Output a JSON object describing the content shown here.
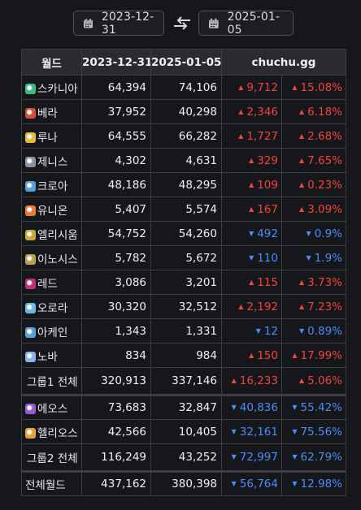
{
  "date_range": {
    "from": "2023-12-31",
    "to": "2025-01-05"
  },
  "table": {
    "headers": {
      "world": "월드",
      "date_from": "2023-12-31",
      "date_to": "2025-01-05",
      "source": "chuchu.gg"
    },
    "rows": [
      {
        "name": "스카니아",
        "icon": "scania-icon",
        "color": "#3fb884",
        "from": "64,394",
        "to": "74,106",
        "diff": "9,712",
        "pct": "15.08%",
        "dir": "up"
      },
      {
        "name": "베라",
        "icon": "bera-icon",
        "color": "#d94a3a",
        "from": "37,952",
        "to": "40,298",
        "diff": "2,346",
        "pct": "6.18%",
        "dir": "up"
      },
      {
        "name": "루나",
        "icon": "luna-icon",
        "color": "#e8b93a",
        "from": "64,555",
        "to": "66,282",
        "diff": "1,727",
        "pct": "2.68%",
        "dir": "up"
      },
      {
        "name": "제니스",
        "icon": "zenith-icon",
        "color": "#8a93a6",
        "from": "4,302",
        "to": "4,631",
        "diff": "329",
        "pct": "7.65%",
        "dir": "up"
      },
      {
        "name": "크로아",
        "icon": "croa-icon",
        "color": "#5c9ed8",
        "from": "48,186",
        "to": "48,295",
        "diff": "109",
        "pct": "0.23%",
        "dir": "up"
      },
      {
        "name": "유니온",
        "icon": "union-icon",
        "color": "#e87b3a",
        "from": "5,407",
        "to": "5,574",
        "diff": "167",
        "pct": "3.09%",
        "dir": "up"
      },
      {
        "name": "엘리시움",
        "icon": "elysium-icon",
        "color": "#c9a83a",
        "from": "54,752",
        "to": "54,260",
        "diff": "492",
        "pct": "0.9%",
        "dir": "down"
      },
      {
        "name": "이노시스",
        "icon": "enosis-icon",
        "color": "#b8a24a",
        "from": "5,782",
        "to": "5,672",
        "diff": "110",
        "pct": "1.9%",
        "dir": "down"
      },
      {
        "name": "레드",
        "icon": "red-icon",
        "color": "#c0307a",
        "from": "3,086",
        "to": "3,201",
        "diff": "115",
        "pct": "3.73%",
        "dir": "up"
      },
      {
        "name": "오로라",
        "icon": "aurora-icon",
        "color": "#6fb7e6",
        "from": "30,320",
        "to": "32,512",
        "diff": "2,192",
        "pct": "7.23%",
        "dir": "up"
      },
      {
        "name": "아케인",
        "icon": "arcane-icon",
        "color": "#5aa0d8",
        "from": "1,343",
        "to": "1,331",
        "diff": "12",
        "pct": "0.89%",
        "dir": "down"
      },
      {
        "name": "노바",
        "icon": "nova-icon",
        "color": "#8ab4e8",
        "from": "834",
        "to": "984",
        "diff": "150",
        "pct": "17.99%",
        "dir": "up"
      },
      {
        "name": "그룹1 전체",
        "total": true,
        "from": "320,913",
        "to": "337,146",
        "diff": "16,233",
        "pct": "5.06%",
        "dir": "up"
      },
      {
        "name": "에오스",
        "icon": "eos-icon",
        "color": "#9a5ad8",
        "from": "73,683",
        "to": "32,847",
        "diff": "40,836",
        "pct": "55.42%",
        "dir": "down"
      },
      {
        "name": "헬리오스",
        "icon": "helios-icon",
        "color": "#e8a23a",
        "from": "42,566",
        "to": "10,405",
        "diff": "32,161",
        "pct": "75.56%",
        "dir": "down"
      },
      {
        "name": "그룹2 전체",
        "total": true,
        "from": "116,249",
        "to": "43,252",
        "diff": "72,997",
        "pct": "62.79%",
        "dir": "down"
      },
      {
        "name": "전체월드",
        "grand": true,
        "from": "437,162",
        "to": "380,398",
        "diff": "56,764",
        "pct": "12.98%",
        "dir": "down"
      }
    ]
  },
  "colors": {
    "up": "#f0443e",
    "down": "#4a8df8",
    "background": "#16171b"
  }
}
